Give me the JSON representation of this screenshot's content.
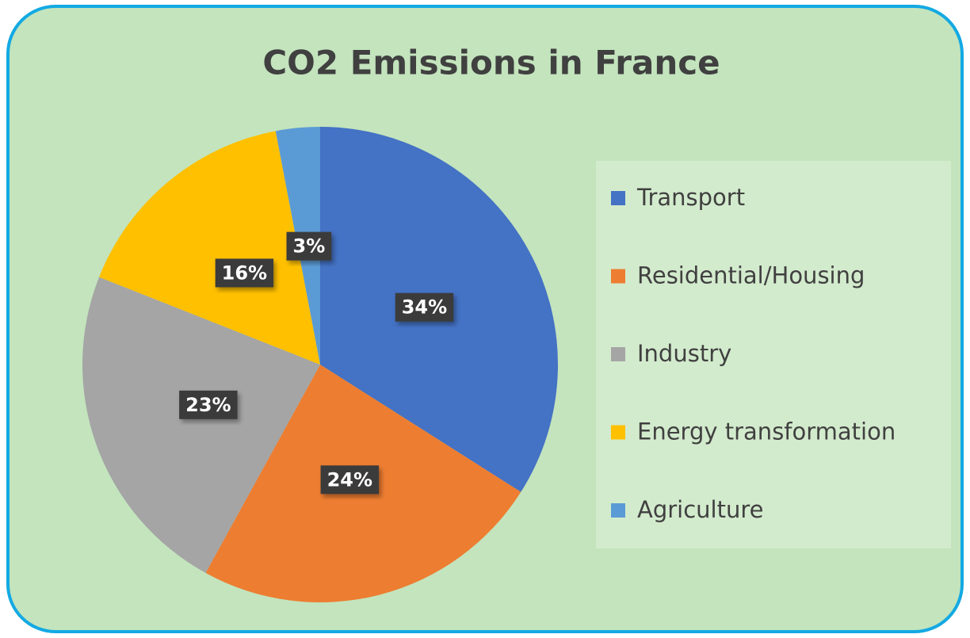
{
  "chart_data": {
    "type": "pie",
    "title": "CO2 Emissions in France",
    "categories": [
      "Transport",
      "Residential/Housing",
      "Industry",
      "Energy transformation",
      "Agriculture"
    ],
    "values": [
      34,
      24,
      23,
      16,
      3
    ],
    "value_labels": [
      "34%",
      "24%",
      "23%",
      "16%",
      "3%"
    ],
    "colors": [
      "#4472c4",
      "#ed7d31",
      "#a5a5a5",
      "#ffc000",
      "#5b9bd5"
    ],
    "legend": "right"
  }
}
